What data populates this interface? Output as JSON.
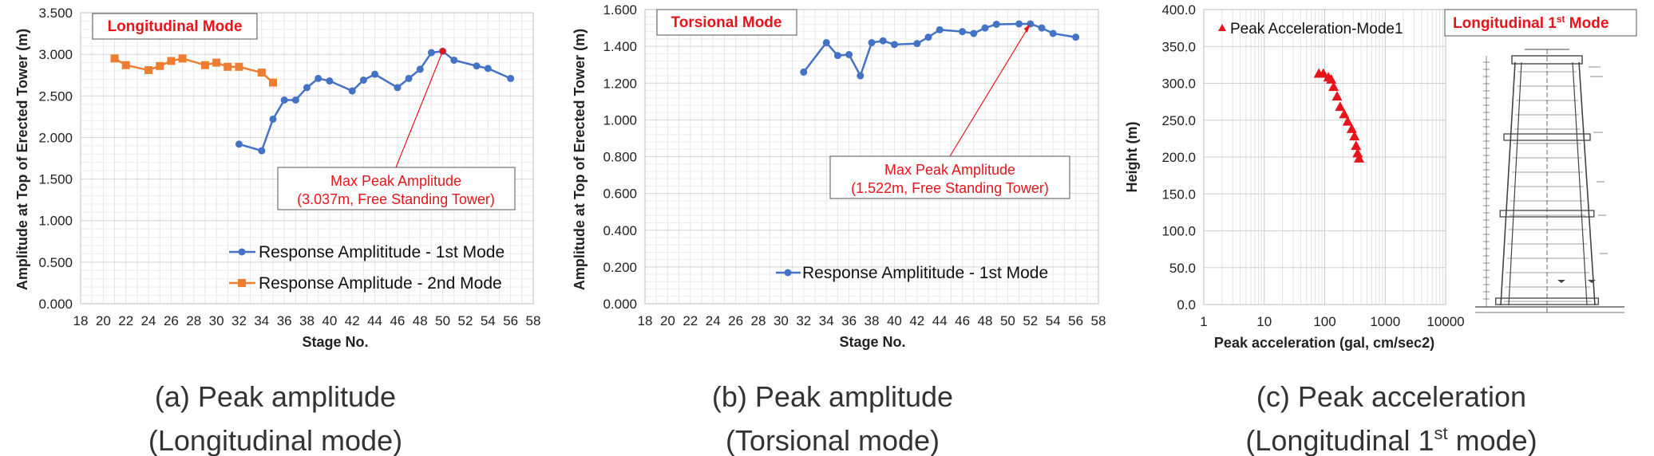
{
  "colors": {
    "blue": "#4472c4",
    "orange": "#ed7d31",
    "red": "#e8141b",
    "grid": "#d9d9d9"
  },
  "chart_data": [
    {
      "type": "line",
      "mode_label": "Longitudinal Mode",
      "xlabel": "Stage No.",
      "ylabel": "Amplitude at Top of Erected Tower (m)",
      "xlim": [
        18,
        58
      ],
      "ylim": [
        0,
        3.5
      ],
      "xticks": [
        "18",
        "20",
        "22",
        "24",
        "26",
        "28",
        "30",
        "32",
        "34",
        "36",
        "38",
        "40",
        "42",
        "44",
        "46",
        "48",
        "50",
        "52",
        "54",
        "56",
        "58"
      ],
      "yticks": [
        "0.000",
        "0.500",
        "1.000",
        "1.500",
        "2.000",
        "2.500",
        "3.000",
        "3.500"
      ],
      "series": [
        {
          "name": "Response Amplititude - 1st Mode",
          "color": "#4472c4",
          "marker": "circle",
          "x": [
            32,
            34,
            35,
            36,
            37,
            38,
            39,
            40,
            42,
            43,
            44,
            46,
            47,
            48,
            49,
            50,
            51,
            53,
            54,
            56
          ],
          "y": [
            1.92,
            1.84,
            2.22,
            2.45,
            2.45,
            2.6,
            2.71,
            2.68,
            2.56,
            2.69,
            2.76,
            2.6,
            2.71,
            2.82,
            3.02,
            3.037,
            2.93,
            2.86,
            2.83,
            2.71
          ]
        },
        {
          "name": "Response Amplitude - 2nd Mode",
          "color": "#ed7d31",
          "marker": "square",
          "x": [
            21,
            22,
            24,
            25,
            26,
            27,
            29,
            30,
            31,
            32,
            34,
            35
          ],
          "y": [
            2.95,
            2.87,
            2.81,
            2.86,
            2.92,
            2.95,
            2.87,
            2.9,
            2.85,
            2.85,
            2.78,
            2.66
          ]
        }
      ],
      "annotation": {
        "line1": "Max Peak Amplitude",
        "line2": "(3.037m, Free Standing Tower)",
        "x": 50,
        "y": 3.037
      }
    },
    {
      "type": "line",
      "mode_label": "Torsional Mode",
      "xlabel": "Stage No.",
      "ylabel": "Amplitude at Top of Erected Tower (m)",
      "xlim": [
        18,
        58
      ],
      "ylim": [
        0,
        1.6
      ],
      "xticks": [
        "18",
        "20",
        "22",
        "24",
        "26",
        "28",
        "30",
        "32",
        "34",
        "36",
        "38",
        "40",
        "42",
        "44",
        "46",
        "48",
        "50",
        "52",
        "54",
        "56",
        "58"
      ],
      "yticks": [
        "0.000",
        "0.200",
        "0.400",
        "0.600",
        "0.800",
        "1.000",
        "1.200",
        "1.400",
        "1.600"
      ],
      "series": [
        {
          "name": "Response Amplititude - 1st Mode",
          "color": "#4472c4",
          "marker": "circle",
          "x": [
            32,
            34,
            35,
            36,
            37,
            38,
            39,
            40,
            42,
            43,
            44,
            46,
            47,
            48,
            49,
            51,
            52,
            53,
            54,
            56
          ],
          "y": [
            1.26,
            1.42,
            1.35,
            1.355,
            1.24,
            1.42,
            1.43,
            1.41,
            1.415,
            1.45,
            1.49,
            1.48,
            1.47,
            1.5,
            1.52,
            1.522,
            1.522,
            1.5,
            1.47,
            1.45
          ]
        }
      ],
      "annotation": {
        "line1": "Max Peak Amplitude",
        "line2": "(1.522m, Free Standing Tower)",
        "x": 52,
        "y": 1.522
      }
    },
    {
      "type": "scatter",
      "xlabel": "Peak acceleration (gal, cm/sec2)",
      "ylabel": "Height (m)",
      "xscale": "log",
      "xlim": [
        1,
        10000
      ],
      "ylim": [
        0,
        400
      ],
      "xticks": [
        "1",
        "10",
        "100",
        "1000",
        "10000"
      ],
      "yticks": [
        "0.0",
        "50.0",
        "100.0",
        "150.0",
        "200.0",
        "250.0",
        "300.0",
        "350.0",
        "400.0"
      ],
      "series": [
        {
          "name": "Peak Acceleration-Mode1",
          "color": "#e8141b",
          "marker": "triangle",
          "x": [
            80,
            95,
            115,
            128,
            140,
            160,
            180,
            210,
            240,
            280,
            310,
            330,
            350,
            370
          ],
          "y": [
            313,
            313,
            308,
            305,
            295,
            282,
            268,
            258,
            248,
            238,
            228,
            215,
            205,
            198
          ]
        }
      ],
      "diagram_label": "Longitudinal 1",
      "diagram_label_sup": "st",
      "diagram_label_tail": " Mode"
    }
  ],
  "captions": {
    "a1": "(a) Peak amplitude",
    "a2": "(Longitudinal mode)",
    "b1": "(b) Peak amplitude",
    "b2": "(Torsional mode)",
    "c1": "(c) Peak acceleration",
    "c2": "(Longitudinal 1",
    "c2sup": "st",
    "c2tail": " mode)"
  }
}
